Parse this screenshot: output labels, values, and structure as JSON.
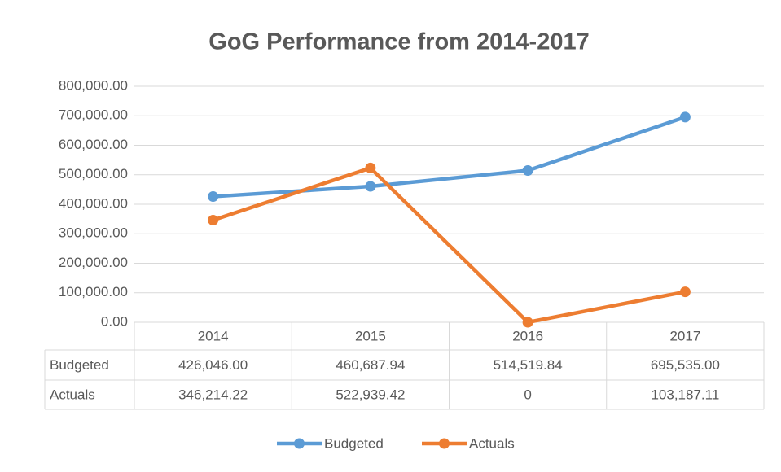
{
  "chart_data": {
    "type": "line",
    "title": "GoG Performance from 2014-2017",
    "categories": [
      "2014",
      "2015",
      "2016",
      "2017"
    ],
    "series": [
      {
        "name": "Budgeted",
        "color": "#5b9bd5",
        "values": [
          426046,
          460687.94,
          514519.84,
          695535
        ],
        "value_labels": [
          "426,046.00",
          "460,687.94",
          "514,519.84",
          "695,535.00"
        ]
      },
      {
        "name": "Actuals",
        "color": "#ed7d31",
        "values": [
          346214.22,
          522939.42,
          0,
          103187.11
        ],
        "value_labels": [
          "346,214.22",
          "522,939.42",
          "0",
          "103,187.11"
        ]
      }
    ],
    "ylim": [
      0,
      800000
    ],
    "yticks": [
      {
        "value": 0,
        "label": "0.00"
      },
      {
        "value": 100000,
        "label": "100,000.00"
      },
      {
        "value": 200000,
        "label": "200,000.00"
      },
      {
        "value": 300000,
        "label": "300,000.00"
      },
      {
        "value": 400000,
        "label": "400,000.00"
      },
      {
        "value": 500000,
        "label": "500,000.00"
      },
      {
        "value": 600000,
        "label": "600,000.00"
      },
      {
        "value": 700000,
        "label": "700,000.00"
      },
      {
        "value": 800000,
        "label": "800,000.00"
      }
    ],
    "grid": true,
    "legend": "bottom"
  }
}
